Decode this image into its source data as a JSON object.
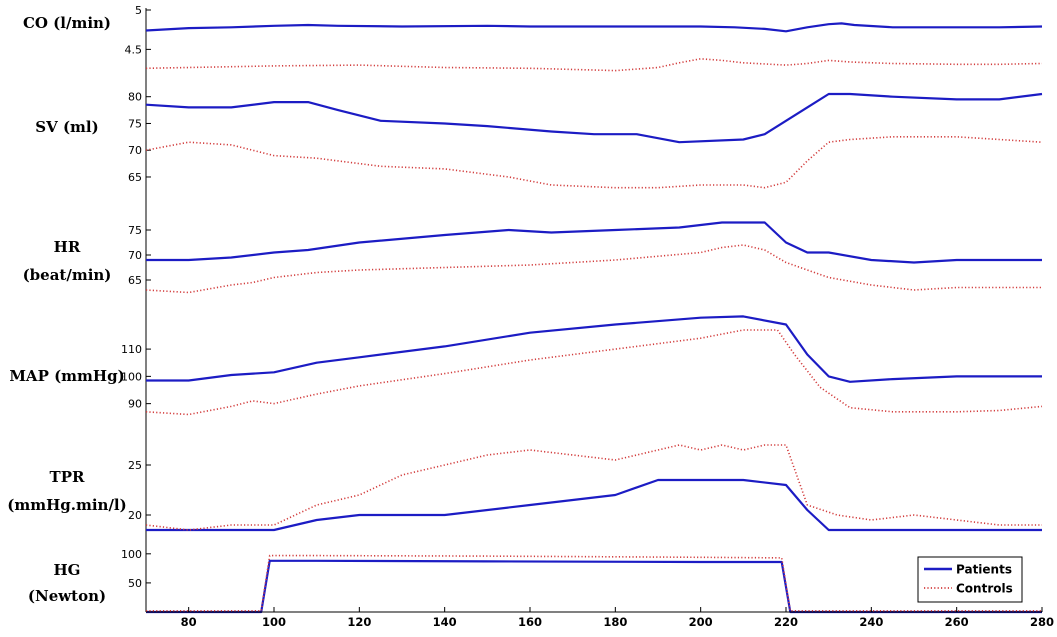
{
  "chart_data": [
    {
      "type": "line",
      "id": "co",
      "ylabel_lines": [
        "CO (l/min)"
      ],
      "ylim": [
        4.2,
        5.0
      ],
      "yticks": [
        4.5,
        5
      ],
      "series": [
        {
          "name": "Patients",
          "color": "#1c1cc4",
          "style": "solid",
          "x": [
            70,
            80,
            90,
            100,
            108,
            115,
            130,
            150,
            160,
            170,
            180,
            190,
            200,
            208,
            215,
            220,
            225,
            230,
            233,
            236,
            245,
            260,
            270,
            280
          ],
          "y": [
            4.74,
            4.77,
            4.78,
            4.8,
            4.81,
            4.8,
            4.79,
            4.8,
            4.79,
            4.79,
            4.79,
            4.79,
            4.79,
            4.78,
            4.76,
            4.73,
            4.78,
            4.82,
            4.83,
            4.81,
            4.78,
            4.78,
            4.78,
            4.79
          ]
        },
        {
          "name": "Controls",
          "color": "#d23c3c",
          "style": "dotted",
          "x": [
            70,
            80,
            100,
            120,
            140,
            160,
            180,
            190,
            195,
            200,
            205,
            210,
            220,
            225,
            230,
            235,
            245,
            260,
            270,
            280
          ],
          "y": [
            4.26,
            4.27,
            4.29,
            4.3,
            4.27,
            4.26,
            4.23,
            4.27,
            4.33,
            4.38,
            4.36,
            4.33,
            4.3,
            4.32,
            4.36,
            4.34,
            4.32,
            4.31,
            4.31,
            4.32
          ]
        }
      ]
    },
    {
      "type": "line",
      "id": "sv",
      "ylabel_lines": [
        "SV (ml)"
      ],
      "ylim": [
        63.5,
        82
      ],
      "yticks": [
        65,
        70,
        75,
        80
      ],
      "series": [
        {
          "name": "Patients",
          "color": "#1c1cc4",
          "style": "solid",
          "x": [
            70,
            80,
            90,
            100,
            108,
            115,
            125,
            140,
            150,
            165,
            175,
            185,
            195,
            210,
            215,
            220,
            225,
            230,
            235,
            245,
            260,
            270,
            280
          ],
          "y": [
            78.5,
            78.0,
            78.0,
            79.0,
            79.0,
            77.5,
            75.5,
            75.0,
            74.5,
            73.5,
            73.0,
            73.0,
            71.5,
            72.0,
            73.0,
            75.5,
            78.0,
            80.5,
            80.5,
            80.0,
            79.5,
            79.5,
            80.5
          ]
        },
        {
          "name": "Controls",
          "color": "#d23c3c",
          "style": "dotted",
          "x": [
            70,
            80,
            90,
            100,
            110,
            125,
            140,
            155,
            165,
            180,
            190,
            200,
            210,
            215,
            220,
            225,
            230,
            235,
            245,
            260,
            270,
            280
          ],
          "y": [
            70.0,
            71.5,
            71.0,
            69.0,
            68.5,
            67.0,
            66.5,
            65.0,
            63.5,
            63.0,
            63.0,
            63.5,
            63.5,
            63.0,
            64.0,
            68.0,
            71.5,
            72.0,
            72.5,
            72.5,
            72.0,
            71.5
          ]
        }
      ]
    },
    {
      "type": "line",
      "id": "hr",
      "ylabel_lines": [
        "HR",
        "(beat/min)"
      ],
      "ylim": [
        61,
        79
      ],
      "yticks": [
        65,
        70,
        75
      ],
      "series": [
        {
          "name": "Patients",
          "color": "#1c1cc4",
          "style": "solid",
          "x": [
            70,
            80,
            90,
            100,
            108,
            120,
            140,
            155,
            165,
            180,
            195,
            205,
            210,
            215,
            220,
            225,
            230,
            240,
            250,
            260,
            270,
            280
          ],
          "y": [
            69.0,
            69.0,
            69.5,
            70.5,
            71.0,
            72.5,
            74.0,
            75.0,
            74.5,
            75.0,
            75.5,
            76.5,
            76.5,
            76.5,
            72.5,
            70.5,
            70.5,
            69.0,
            68.5,
            69.0,
            69.0,
            69.0
          ]
        },
        {
          "name": "Controls",
          "color": "#d23c3c",
          "style": "dotted",
          "x": [
            70,
            80,
            90,
            95,
            100,
            110,
            120,
            140,
            160,
            180,
            200,
            205,
            210,
            215,
            220,
            225,
            230,
            240,
            250,
            260,
            270,
            280
          ],
          "y": [
            63.0,
            62.5,
            64.0,
            64.5,
            65.5,
            66.5,
            67.0,
            67.5,
            68.0,
            69.0,
            70.5,
            71.5,
            72.0,
            71.0,
            68.5,
            67.0,
            65.5,
            64.0,
            63.0,
            63.5,
            63.5,
            63.5
          ]
        }
      ]
    },
    {
      "type": "line",
      "id": "map",
      "ylabel_lines": [
        "MAP (mmHg)"
      ],
      "ylim": [
        84,
        128
      ],
      "yticks": [
        90,
        100,
        110
      ],
      "series": [
        {
          "name": "Patients",
          "color": "#1c1cc4",
          "style": "solid",
          "x": [
            70,
            80,
            90,
            100,
            110,
            120,
            140,
            160,
            180,
            200,
            210,
            220,
            225,
            230,
            235,
            245,
            260,
            270,
            280
          ],
          "y": [
            98.5,
            98.5,
            100.5,
            101.5,
            105.0,
            107.0,
            111.0,
            116.0,
            119.0,
            121.5,
            122.0,
            119.0,
            108.0,
            100.0,
            98.0,
            99.0,
            100.0,
            100.0,
            100.0
          ]
        },
        {
          "name": "Controls",
          "color": "#d23c3c",
          "style": "dotted",
          "x": [
            70,
            80,
            90,
            95,
            100,
            110,
            120,
            140,
            160,
            180,
            200,
            210,
            218,
            222,
            228,
            235,
            245,
            260,
            270,
            280
          ],
          "y": [
            87.0,
            86.0,
            89.0,
            91.0,
            90.0,
            93.5,
            96.5,
            101.0,
            106.0,
            110.0,
            114.0,
            117.0,
            117.0,
            108.0,
            96.0,
            88.5,
            87.0,
            87.0,
            87.5,
            89.0
          ]
        }
      ]
    },
    {
      "type": "line",
      "id": "tpr",
      "ylabel_lines": [
        "TPR",
        "(mmHg.min/l)"
      ],
      "ylim": [
        17,
        29
      ],
      "yticks": [
        20,
        25
      ],
      "series": [
        {
          "name": "Patients",
          "color": "#1c1cc4",
          "style": "solid",
          "x": [
            70,
            80,
            90,
            100,
            110,
            120,
            140,
            160,
            170,
            180,
            190,
            198,
            210,
            220,
            225,
            230,
            240,
            250,
            260,
            270,
            280
          ],
          "y": [
            18.5,
            18.5,
            18.5,
            18.5,
            19.5,
            20.0,
            20.0,
            21.0,
            21.5,
            22.0,
            23.5,
            23.5,
            23.5,
            23.0,
            20.5,
            18.5,
            18.5,
            18.5,
            18.5,
            18.5,
            18.5
          ]
        },
        {
          "name": "Controls",
          "color": "#d23c3c",
          "style": "dotted",
          "x": [
            70,
            80,
            90,
            100,
            110,
            120,
            130,
            140,
            150,
            160,
            170,
            180,
            185,
            190,
            195,
            200,
            205,
            210,
            215,
            220,
            225,
            232,
            240,
            250,
            260,
            270,
            280
          ],
          "y": [
            19.0,
            18.5,
            19.0,
            19.0,
            21.0,
            22.0,
            24.0,
            25.0,
            26.0,
            26.5,
            26.0,
            25.5,
            26.0,
            26.5,
            27.0,
            26.5,
            27.0,
            26.5,
            27.0,
            27.0,
            21.0,
            20.0,
            19.5,
            20.0,
            19.5,
            19.0,
            19.0
          ]
        }
      ]
    },
    {
      "type": "line",
      "id": "hg",
      "ylabel_lines": [
        "HG",
        "(Newton)"
      ],
      "ylim": [
        0,
        110
      ],
      "yticks": [
        50,
        100
      ],
      "series": [
        {
          "name": "Patients",
          "color": "#1c1cc4",
          "style": "solid",
          "x": [
            70,
            97,
            99,
            110,
            150,
            200,
            219,
            221,
            280
          ],
          "y": [
            0,
            0,
            88,
            88,
            87,
            86,
            86,
            0,
            0
          ]
        },
        {
          "name": "Controls",
          "color": "#d23c3c",
          "style": "dotted",
          "x": [
            70,
            97,
            99,
            110,
            150,
            200,
            219,
            221,
            280
          ],
          "y": [
            2,
            2,
            97,
            97,
            96,
            94,
            93,
            2,
            2
          ]
        }
      ]
    }
  ],
  "xaxis": {
    "xlim": [
      70,
      280
    ],
    "ticks": [
      80,
      100,
      120,
      140,
      160,
      180,
      200,
      220,
      240,
      260,
      280
    ]
  },
  "legend": {
    "position": "bottom-right",
    "entries": [
      {
        "label": "Patients",
        "color": "#1c1cc4",
        "style": "solid"
      },
      {
        "label": "Controls",
        "color": "#d23c3c",
        "style": "dotted"
      }
    ]
  }
}
